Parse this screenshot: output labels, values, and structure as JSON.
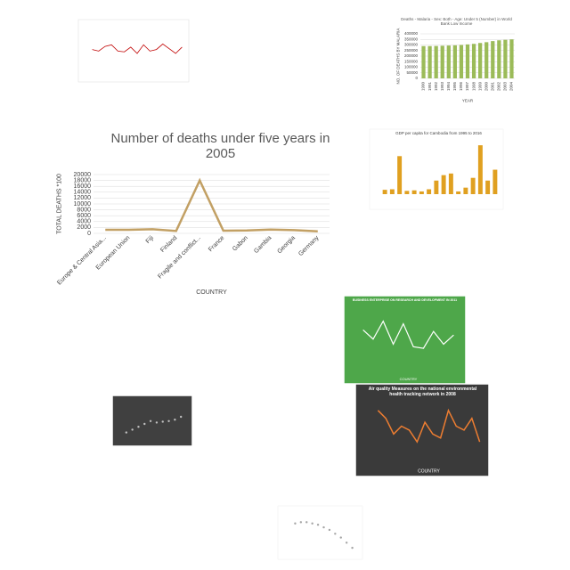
{
  "chart_data": [
    {
      "type": "line",
      "title": "Number of deaths under five years in 2005",
      "categories": [
        "Europe & Central Asia...",
        "European Union",
        "Fiji",
        "Finland",
        "Fragile and conflict...",
        "France",
        "Gabon",
        "Gambia",
        "Georgia",
        "Germany"
      ],
      "values": [
        1200,
        1200,
        1400,
        800,
        18000,
        900,
        1000,
        1300,
        1100,
        700
      ],
      "color": "#c2a064",
      "ylim": [
        0,
        20000
      ],
      "yticks": [
        0,
        2000,
        4000,
        6000,
        8000,
        10000,
        12000,
        14000,
        16000,
        18000,
        20000
      ],
      "ylabel": "TOTAL DEATHS *100",
      "xlabel": "COUNTRY",
      "grid": true
    },
    {
      "type": "line",
      "values": [
        30,
        28,
        34,
        36,
        28,
        27,
        33,
        25,
        36,
        28,
        30,
        37,
        31,
        25,
        33
      ],
      "color": "#c00000",
      "ylim": [
        0,
        50
      ]
    },
    {
      "type": "bar",
      "title": "Deaths - Malaria - Sex: Both - Age: Under 5 (Number) in World Bank Low Income",
      "categories": [
        "1990",
        "1991",
        "1992",
        "1993",
        "1994",
        "1995",
        "1996",
        "1997",
        "1998",
        "1999",
        "2000",
        "2001",
        "2002",
        "2003",
        "2004"
      ],
      "values": [
        290000,
        290000,
        291000,
        293000,
        295000,
        297000,
        300000,
        305000,
        310000,
        318000,
        325000,
        335000,
        342000,
        346000,
        350000
      ],
      "color": "#9bbb59",
      "ylim": [
        0,
        400000
      ],
      "yticks": [
        0,
        50000,
        100000,
        150000,
        200000,
        250000,
        300000,
        350000,
        400000
      ],
      "ylabel": "NO. OF DEATHS BY MALARIA",
      "xlabel": "YEAR",
      "grid": true
    },
    {
      "type": "bar",
      "title": "GDP per capita for Cambodia from 1995 to 2016",
      "values": [
        800,
        900,
        7000,
        600,
        700,
        500,
        900,
        2500,
        3500,
        3800,
        500,
        1200,
        3000,
        9000,
        2500,
        4500
      ],
      "color": "#e0a020",
      "ylim": [
        0,
        10000
      ]
    },
    {
      "type": "line",
      "title": "BUSINESS ENTERPRISE ON RESEARCH AND DEVELOPMENT IN 2011",
      "values": [
        4800,
        3000,
        6500,
        2000,
        6000,
        1500,
        1200,
        4500,
        2000,
        3800
      ],
      "color": "#ffffff",
      "ylim": [
        0,
        8000
      ],
      "xlabel": "COUNTRY"
    },
    {
      "type": "scatter",
      "x": [
        1,
        2,
        3,
        4,
        5,
        6,
        7,
        8,
        9,
        10
      ],
      "values": [
        2,
        3,
        4,
        5,
        6,
        5.5,
        5.8,
        6,
        6.5,
        7.5
      ],
      "color": "#bfbfbf",
      "xlim": [
        0,
        11
      ],
      "ylim": [
        0,
        10
      ]
    },
    {
      "type": "line",
      "title": "Air quality Measures on the national environmental health tracking network in 2008",
      "values": [
        1000000,
        800000,
        400000,
        600000,
        500000,
        200000,
        700000,
        400000,
        300000,
        1000000,
        600000,
        500000,
        800000,
        200000
      ],
      "color": "#ed7d31",
      "ylim": [
        0,
        1200000
      ],
      "ylabel": "VALUE OF AIR QUALITY",
      "xlabel": "COUNTRY"
    },
    {
      "type": "scatter",
      "x": [
        1,
        2,
        3,
        4,
        5,
        6,
        7,
        8,
        9,
        10,
        11
      ],
      "values": [
        2.1,
        2.2,
        2.2,
        2.1,
        2.0,
        1.8,
        1.6,
        1.3,
        1.0,
        0.6,
        0.2
      ],
      "color": "#a6a6a6",
      "xlim": [
        0,
        12
      ],
      "ylim": [
        0,
        2.5
      ]
    }
  ]
}
